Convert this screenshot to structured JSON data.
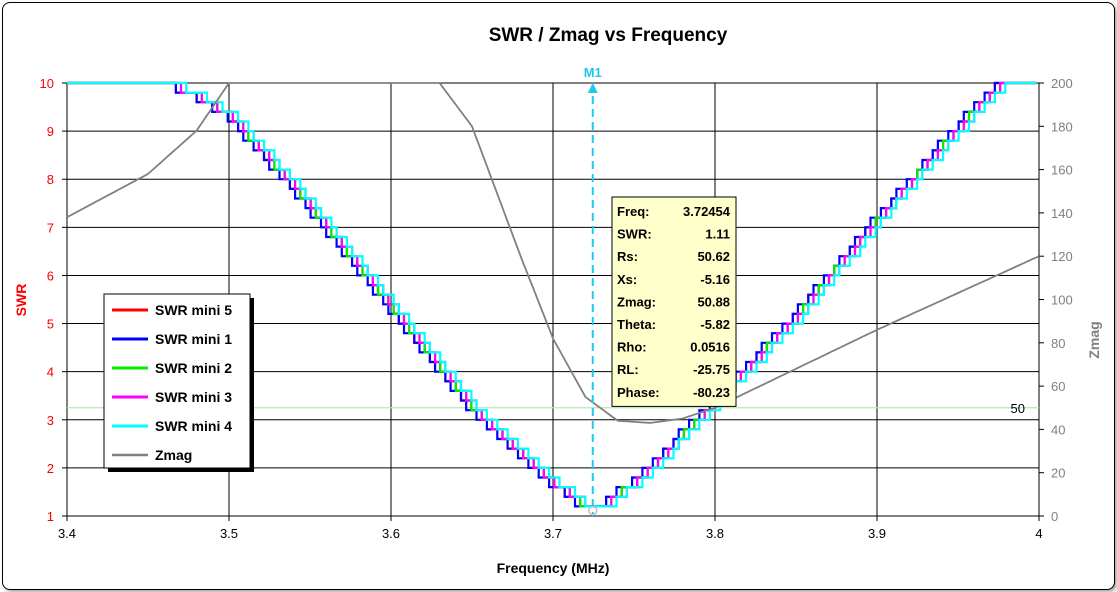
{
  "chart_data": {
    "type": "line",
    "title": "SWR / Zmag  vs  Frequency",
    "xlabel": "Frequency (MHz)",
    "ylabel": "SWR",
    "y2label": "Zmag",
    "xlim": [
      3.4,
      4.0
    ],
    "ylim": [
      1,
      10
    ],
    "y2lim": [
      0,
      200
    ],
    "x_ticks": [
      "3.4",
      "3.5",
      "3.6",
      "3.7",
      "3.8",
      "3.9",
      "4"
    ],
    "y_ticks": [
      "1",
      "2",
      "3",
      "4",
      "5",
      "6",
      "7",
      "8",
      "9",
      "10"
    ],
    "y2_ticks": [
      "0",
      "20",
      "40",
      "60",
      "80",
      "100",
      "120",
      "140",
      "160",
      "180",
      "200"
    ],
    "grid": true,
    "legend_position": "left",
    "series": [
      {
        "name": "SWR mini 5",
        "color": "#ff0000",
        "axis": "left",
        "offset": 0.0,
        "x": [
          3.46,
          3.48,
          3.5,
          3.55,
          3.6,
          3.65,
          3.7,
          3.724,
          3.75,
          3.8,
          3.85,
          3.9,
          3.95,
          3.975
        ],
        "y": [
          10,
          9.7,
          9.3,
          7.4,
          5.3,
          3.2,
          1.65,
          1.11,
          1.7,
          3.4,
          5.2,
          7.2,
          9.1,
          10
        ]
      },
      {
        "name": "SWR mini 1",
        "color": "#0000ff",
        "axis": "left",
        "offset": -0.002,
        "x": [
          3.46,
          3.48,
          3.5,
          3.55,
          3.6,
          3.65,
          3.7,
          3.724,
          3.75,
          3.8,
          3.85,
          3.9,
          3.95,
          3.975
        ],
        "y": [
          10,
          9.7,
          9.3,
          7.4,
          5.3,
          3.2,
          1.65,
          1.11,
          1.7,
          3.4,
          5.2,
          7.2,
          9.1,
          10
        ]
      },
      {
        "name": "SWR mini 2",
        "color": "#00ee00",
        "axis": "left",
        "offset": 0.001,
        "x": [
          3.46,
          3.48,
          3.5,
          3.55,
          3.6,
          3.65,
          3.7,
          3.724,
          3.75,
          3.8,
          3.85,
          3.9,
          3.95,
          3.975
        ],
        "y": [
          10,
          9.7,
          9.3,
          7.4,
          5.3,
          3.2,
          1.65,
          1.11,
          1.7,
          3.4,
          5.2,
          7.2,
          9.1,
          10
        ]
      },
      {
        "name": "SWR mini 3",
        "color": "#ff00ff",
        "axis": "left",
        "offset": 0.002,
        "x": [
          3.46,
          3.48,
          3.5,
          3.55,
          3.6,
          3.65,
          3.7,
          3.724,
          3.75,
          3.8,
          3.85,
          3.9,
          3.95,
          3.975
        ],
        "y": [
          10,
          9.7,
          9.3,
          7.4,
          5.3,
          3.2,
          1.65,
          1.11,
          1.7,
          3.4,
          5.2,
          7.2,
          9.1,
          10
        ]
      },
      {
        "name": "SWR mini 4",
        "color": "#00ffff",
        "axis": "left",
        "offset": 0.004,
        "x": [
          3.46,
          3.48,
          3.5,
          3.55,
          3.6,
          3.65,
          3.7,
          3.724,
          3.75,
          3.8,
          3.85,
          3.9,
          3.95,
          3.975
        ],
        "y": [
          10,
          9.7,
          9.3,
          7.4,
          5.3,
          3.2,
          1.65,
          1.11,
          1.7,
          3.4,
          5.2,
          7.2,
          9.1,
          10
        ]
      },
      {
        "name": "Zmag",
        "color": "#808080",
        "axis": "right",
        "offset": 0.0,
        "x": [
          3.4,
          3.45,
          3.48,
          3.5,
          3.63,
          3.65,
          3.68,
          3.7,
          3.72,
          3.74,
          3.76,
          3.78,
          3.8,
          3.85,
          3.9,
          3.95,
          4.0
        ],
        "y": [
          138,
          158,
          178,
          200,
          200,
          180,
          120,
          82,
          55,
          44,
          43,
          45,
          50,
          68,
          86,
          103,
          120
        ]
      }
    ],
    "reference_line": {
      "axis": "right",
      "value": 50,
      "label": "50",
      "color": "#b8e6b8"
    },
    "marker": {
      "label": "M1",
      "x": 3.72454,
      "color": "#1ec8ee"
    },
    "marker_readout": [
      {
        "key": "Freq:",
        "value": "3.72454"
      },
      {
        "key": "SWR:",
        "value": "1.11"
      },
      {
        "key": "Rs:",
        "value": "50.62"
      },
      {
        "key": "Xs:",
        "value": "-5.16"
      },
      {
        "key": "Zmag:",
        "value": "50.88"
      },
      {
        "key": "Theta:",
        "value": "-5.82"
      },
      {
        "key": "Rho:",
        "value": "0.0516"
      },
      {
        "key": "RL:",
        "value": "-25.75"
      },
      {
        "key": "Phase:",
        "value": "-80.23"
      }
    ],
    "colors": {
      "left_axis": "#ff0000",
      "right_axis": "#808080",
      "readout_bg": "#ffffcc"
    }
  }
}
